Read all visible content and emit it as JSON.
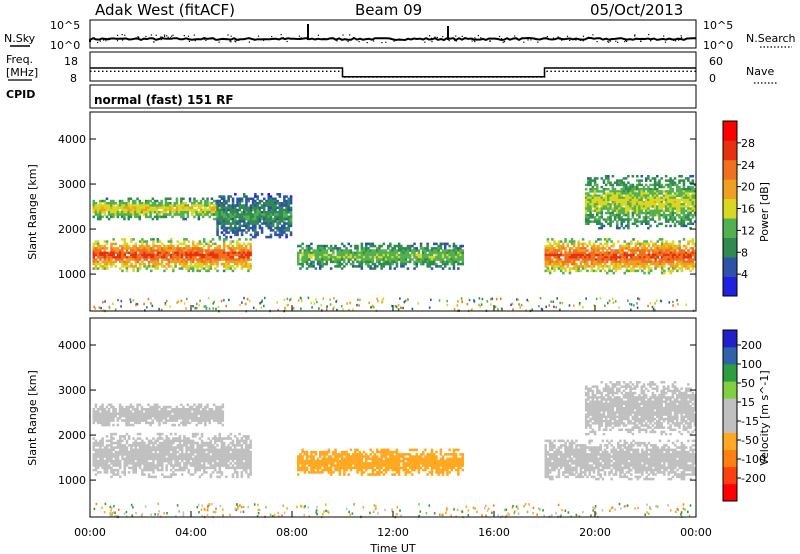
{
  "header": {
    "station": "Adak West (fitACF)",
    "beam": "Beam 09",
    "date": "05/Oct/2013"
  },
  "noise_panel": {
    "left_label": "N.Sky",
    "right_label": "N.Search",
    "tick_top": "10^5",
    "tick_bottom": "10^0"
  },
  "freq_panel": {
    "left_label_1": "Freq.",
    "left_label_2": "[MHz]",
    "right_label": "Nave",
    "left_ticks": [
      "18",
      "8"
    ],
    "right_ticks": [
      "60",
      "0"
    ],
    "freq_values": [
      12.5,
      9.5,
      12.5
    ],
    "nave_values": [
      20,
      8,
      20
    ],
    "segments_hours": [
      0,
      10,
      18,
      24
    ]
  },
  "cpid": {
    "label": "CPID",
    "text": "normal (fast) 151 RF"
  },
  "colors": {
    "power": [
      "#2020e0",
      "#2e52a8",
      "#2e8a50",
      "#52b050",
      "#d8d820",
      "#f0a020",
      "#f07020",
      "#e83010",
      "#ff0000"
    ],
    "velocity": [
      "#ff0000",
      "#ff4010",
      "#ff8010",
      "#ffa820",
      "#c0c0c0",
      "#c0c0c0",
      "#80d040",
      "#2e9c40",
      "#2f62a8",
      "#2020c8"
    ]
  },
  "chart_data": [
    {
      "type": "heatmap",
      "title": "Power",
      "xlabel": "",
      "ylabel": "Slant Range [km]",
      "xlim": [
        0,
        24
      ],
      "ylim": [
        180,
        4600
      ],
      "yticks": [
        1000,
        2000,
        3000,
        4000
      ],
      "colorbar": {
        "label": "Power [dB]",
        "range": [
          0,
          32
        ],
        "ticks": [
          "4",
          "8",
          "12",
          "16",
          "20",
          "24",
          "28"
        ]
      },
      "echo_regions": [
        {
          "start_h": 0.1,
          "end_h": 6.4,
          "range_km": [
            1050,
            1800
          ],
          "level_db": 26
        },
        {
          "start_h": 0.1,
          "end_h": 5.3,
          "range_km": [
            2200,
            2700
          ],
          "level_db": 18
        },
        {
          "start_h": 5.0,
          "end_h": 8.0,
          "range_km": [
            1800,
            2800
          ],
          "level_db": 10
        },
        {
          "start_h": 8.2,
          "end_h": 14.8,
          "range_km": [
            1100,
            1700
          ],
          "level_db": 14
        },
        {
          "start_h": 18.0,
          "end_h": 24.0,
          "range_km": [
            1000,
            1800
          ],
          "level_db": 26
        },
        {
          "start_h": 19.6,
          "end_h": 24.0,
          "range_km": [
            2000,
            3200
          ],
          "level_db": 16
        }
      ]
    },
    {
      "type": "heatmap",
      "title": "Velocity",
      "xlabel": "Time UT",
      "ylabel": "Slant Range [km]",
      "xlim": [
        0,
        24
      ],
      "ylim": [
        180,
        4600
      ],
      "xticks": [
        "00:00",
        "04:00",
        "08:00",
        "12:00",
        "16:00",
        "20:00",
        "00:00"
      ],
      "yticks": [
        1000,
        2000,
        3000,
        4000
      ],
      "colorbar": {
        "label": "Velocity [m s^-1]",
        "ticks": [
          "200",
          "100",
          "50",
          "15",
          "-15",
          "-50",
          "-100",
          "-200"
        ]
      },
      "echo_regions": [
        {
          "start_h": 0.1,
          "end_h": 6.4,
          "range_km": [
            1050,
            2050
          ],
          "velocity": 0
        },
        {
          "start_h": 0.1,
          "end_h": 5.3,
          "range_km": [
            2200,
            2700
          ],
          "velocity": 0
        },
        {
          "start_h": 8.2,
          "end_h": 14.8,
          "range_km": [
            1100,
            1700
          ],
          "velocity": -40
        },
        {
          "start_h": 18.0,
          "end_h": 24.0,
          "range_km": [
            1000,
            1900
          ],
          "velocity": 0
        },
        {
          "start_h": 19.6,
          "end_h": 24.0,
          "range_km": [
            2000,
            3200
          ],
          "velocity": 0
        }
      ]
    }
  ]
}
